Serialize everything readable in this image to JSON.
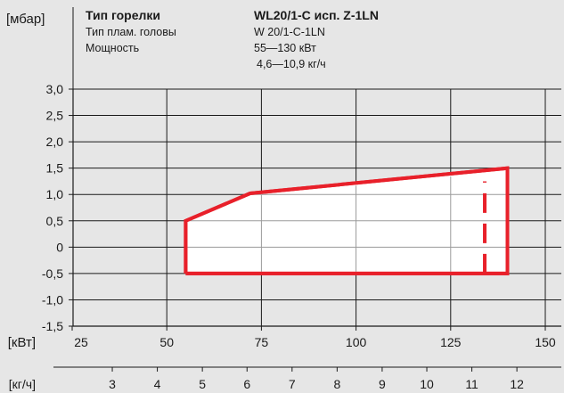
{
  "header": {
    "unit": "[мбар]",
    "burner_type_label": "Тип горелки",
    "burner_type_value": "WL20/1-C исп. Z-1LN",
    "head_type_label": "Тип плам. головы",
    "head_type_value": "W 20/1-C-1LN",
    "power_label": "Мощность",
    "power_value_kw": "55—130 кВт",
    "power_value_kgh": "4,6—10,9 кг/ч"
  },
  "chart_data": {
    "type": "area",
    "title": "",
    "ylabel": "[мбар]",
    "xlabel": "[кВт]",
    "x2label": "[кг/ч]",
    "ylim": [
      -1.5,
      3.0
    ],
    "xlim": [
      25,
      150
    ],
    "y_ticks": [
      "3,0",
      "2,5",
      "2,0",
      "1,5",
      "1,0",
      "0,5",
      "0",
      "-0,5",
      "-1,0",
      "-1,5"
    ],
    "y_tick_values": [
      3.0,
      2.5,
      2.0,
      1.5,
      1.0,
      0.5,
      0.0,
      -0.5,
      -1.0,
      -1.5
    ],
    "x_ticks": [
      "25",
      "50",
      "75",
      "100",
      "125",
      "150"
    ],
    "x_tick_values": [
      25,
      50,
      75,
      100,
      125,
      150
    ],
    "x2_ticks": [
      "3",
      "4",
      "5",
      "6",
      "7",
      "8",
      "9",
      "10",
      "11",
      "12"
    ],
    "x2_tick_values_kw": [
      35.6,
      47.5,
      59.4,
      71.2,
      83.1,
      95.0,
      106.9,
      118.7,
      130.6,
      142.5
    ],
    "grid": true,
    "series": [
      {
        "points": [
          [
            55,
            -0.5
          ],
          [
            55,
            0.5
          ],
          [
            72,
            1.02
          ],
          [
            140,
            1.5
          ],
          [
            140,
            -0.5
          ],
          [
            55,
            -0.5
          ]
        ],
        "color": "#e8202a",
        "fill": "#ffffff"
      }
    ],
    "limit_line": {
      "x": 134,
      "y_from": -0.5,
      "y_to": 1.25,
      "style": "dashed",
      "color": "#e8202a"
    }
  }
}
